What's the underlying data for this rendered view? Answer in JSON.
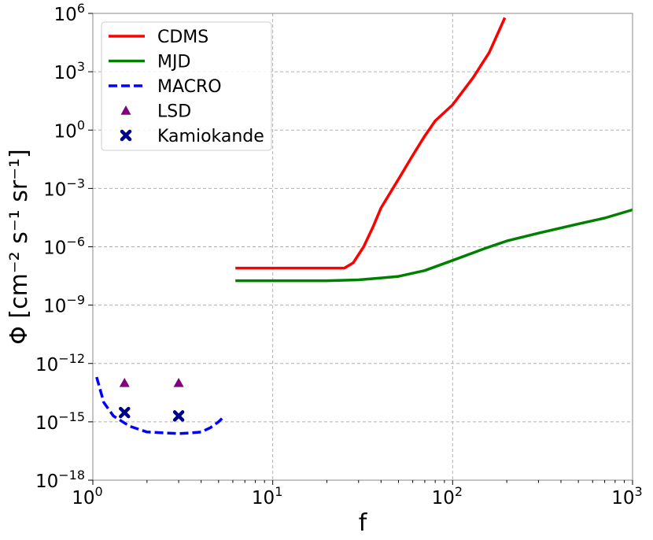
{
  "chart_data": {
    "type": "line",
    "xscale": "log",
    "yscale": "log",
    "xlim": [
      1,
      1000
    ],
    "ylim": [
      1e-18,
      1000000.0
    ],
    "xlabel": "f",
    "ylabel": "Φ [cm⁻² s⁻¹ sr⁻¹]",
    "grid": true,
    "legend_position": "top-left",
    "x_ticks": [
      {
        "base": "10",
        "exp": "0"
      },
      {
        "base": "10",
        "exp": "1"
      },
      {
        "base": "10",
        "exp": "2"
      },
      {
        "base": "10",
        "exp": "3"
      }
    ],
    "y_ticks": [
      {
        "base": "10",
        "exp": "−18"
      },
      {
        "base": "10",
        "exp": "−15"
      },
      {
        "base": "10",
        "exp": "−12"
      },
      {
        "base": "10",
        "exp": "−9"
      },
      {
        "base": "10",
        "exp": "−6"
      },
      {
        "base": "10",
        "exp": "−3"
      },
      {
        "base": "10",
        "exp": "0"
      },
      {
        "base": "10",
        "exp": "3"
      },
      {
        "base": "10",
        "exp": "6"
      }
    ],
    "series": [
      {
        "name": "CDMS",
        "style": "line",
        "color": "#ff0000",
        "points": [
          [
            6.2,
            8e-08
          ],
          [
            10,
            8e-08
          ],
          [
            15,
            8e-08
          ],
          [
            20,
            8e-08
          ],
          [
            25,
            8e-08
          ],
          [
            28,
            1.5e-07
          ],
          [
            32,
            1e-06
          ],
          [
            36,
            1e-05
          ],
          [
            40,
            0.0001
          ],
          [
            50,
            0.003
          ],
          [
            60,
            0.05
          ],
          [
            70,
            0.5
          ],
          [
            80,
            3
          ],
          [
            100,
            20
          ],
          [
            130,
            500
          ],
          [
            160,
            10000.0
          ],
          [
            195,
            600000.0
          ]
        ]
      },
      {
        "name": "MJD",
        "style": "line",
        "color": "#008000",
        "points": [
          [
            6.2,
            1.8e-08
          ],
          [
            10,
            1.8e-08
          ],
          [
            15,
            1.8e-08
          ],
          [
            20,
            1.8e-08
          ],
          [
            30,
            2e-08
          ],
          [
            40,
            2.5e-08
          ],
          [
            50,
            3e-08
          ],
          [
            70,
            6e-08
          ],
          [
            100,
            2e-07
          ],
          [
            150,
            8e-07
          ],
          [
            200,
            2e-06
          ],
          [
            300,
            5e-06
          ],
          [
            500,
            1.5e-05
          ],
          [
            700,
            3e-05
          ],
          [
            1000,
            8e-05
          ]
        ]
      },
      {
        "name": "MACRO",
        "style": "dashed",
        "color": "#0000ff",
        "points": [
          [
            1.05,
            2e-13
          ],
          [
            1.15,
            1e-14
          ],
          [
            1.3,
            2e-15
          ],
          [
            1.6,
            6e-16
          ],
          [
            2,
            3e-16
          ],
          [
            2.5,
            2.7e-16
          ],
          [
            3,
            2.5e-16
          ],
          [
            3.5,
            2.7e-16
          ],
          [
            4,
            3e-16
          ],
          [
            4.5,
            5e-16
          ],
          [
            5,
            1e-15
          ],
          [
            5.4,
            2e-15
          ]
        ]
      },
      {
        "name": "LSD",
        "style": "marker",
        "marker": "triangle",
        "color": "#800080",
        "points": [
          [
            1.5,
            1e-13
          ],
          [
            3,
            1e-13
          ]
        ]
      },
      {
        "name": "Kamiokande",
        "style": "marker",
        "marker": "x",
        "color": "#00008b",
        "points": [
          [
            1.5,
            3e-15
          ],
          [
            3,
            2e-15
          ]
        ]
      }
    ]
  }
}
